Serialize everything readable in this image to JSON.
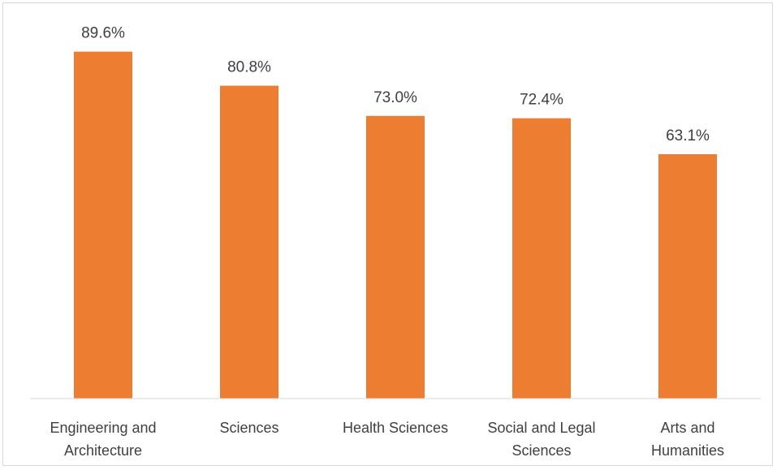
{
  "chart_data": {
    "type": "bar",
    "title": "",
    "xlabel": "",
    "ylabel": "",
    "categories": [
      [
        "Engineering and",
        "Architecture"
      ],
      [
        "Sciences"
      ],
      [
        "Health Sciences"
      ],
      [
        "Social and Legal",
        "Sciences"
      ],
      [
        "Arts and",
        "Humanities"
      ]
    ],
    "values": [
      89.6,
      80.8,
      73.0,
      72.4,
      63.1
    ],
    "data_labels": [
      "89.6%",
      "80.8%",
      "73.0%",
      "72.4%",
      "63.1%"
    ],
    "ylim": [
      0,
      100
    ],
    "grid": false,
    "legend": "none",
    "bar_color": "#ed7d31",
    "axis_color": "#d9d9d9",
    "text_color": "#404040"
  }
}
